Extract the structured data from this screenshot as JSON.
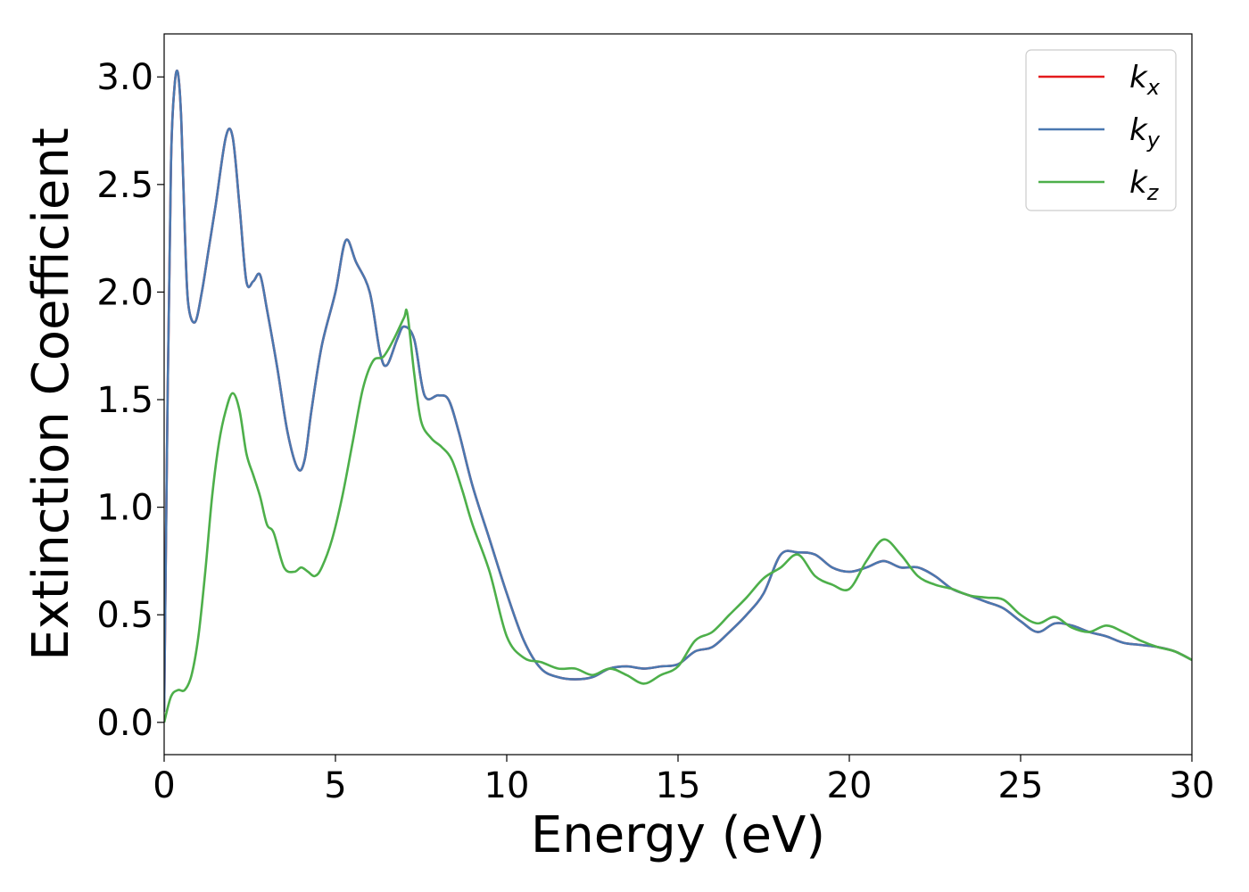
{
  "chart_data": {
    "type": "line",
    "title": "",
    "xlabel": "Energy (eV)",
    "ylabel": "Extinction Coefficient",
    "xlim": [
      0,
      30
    ],
    "ylim": [
      -0.15,
      3.2
    ],
    "xticks": [
      0,
      5,
      10,
      15,
      20,
      25,
      30
    ],
    "xtick_labels": [
      "0",
      "5",
      "10",
      "15",
      "20",
      "25",
      "30"
    ],
    "yticks": [
      0.0,
      0.5,
      1.0,
      1.5,
      2.0,
      2.5,
      3.0
    ],
    "ytick_labels": [
      "0.0",
      "0.5",
      "1.0",
      "1.5",
      "2.0",
      "2.5",
      "3.0"
    ],
    "grid": false,
    "legend_position": "top-right",
    "series": [
      {
        "name": "k_x",
        "legend_main": "k",
        "legend_sub": "x",
        "color": "#e41a1c",
        "x": [
          0,
          0.1,
          0.2,
          0.3,
          0.4,
          0.5,
          0.6,
          0.7,
          0.9,
          1.1,
          1.3,
          1.5,
          1.8,
          2.0,
          2.2,
          2.4,
          2.6,
          2.8,
          3.0,
          3.3,
          3.6,
          3.9,
          4.1,
          4.3,
          4.6,
          5.0,
          5.3,
          5.6,
          6.0,
          6.3,
          6.5,
          6.8,
          7.0,
          7.3,
          7.6,
          8.0,
          8.3,
          8.6,
          9.0,
          9.5,
          10.0,
          10.5,
          11.0,
          11.5,
          12.0,
          12.5,
          13.0,
          13.5,
          14.0,
          14.5,
          15.0,
          15.5,
          16.0,
          16.5,
          17.0,
          17.5,
          18.0,
          18.5,
          19.0,
          19.5,
          20.0,
          20.5,
          21.0,
          21.5,
          22.0,
          22.5,
          23.0,
          23.5,
          24.0,
          24.5,
          25.0,
          25.5,
          26.0,
          26.5,
          27.0,
          27.5,
          28.0,
          28.5,
          29.0,
          29.5,
          30.0
        ],
        "y": [
          0.05,
          1.5,
          2.6,
          2.95,
          3.02,
          2.8,
          2.3,
          1.95,
          1.86,
          2.0,
          2.2,
          2.4,
          2.72,
          2.72,
          2.4,
          2.05,
          2.05,
          2.08,
          1.92,
          1.65,
          1.35,
          1.18,
          1.22,
          1.45,
          1.75,
          2.0,
          2.24,
          2.14,
          2.0,
          1.72,
          1.66,
          1.78,
          1.84,
          1.78,
          1.52,
          1.52,
          1.5,
          1.35,
          1.1,
          0.85,
          0.6,
          0.38,
          0.25,
          0.21,
          0.2,
          0.21,
          0.25,
          0.26,
          0.25,
          0.26,
          0.27,
          0.33,
          0.35,
          0.42,
          0.5,
          0.6,
          0.78,
          0.79,
          0.78,
          0.72,
          0.7,
          0.72,
          0.75,
          0.72,
          0.72,
          0.68,
          0.62,
          0.59,
          0.56,
          0.53,
          0.47,
          0.42,
          0.46,
          0.45,
          0.42,
          0.4,
          0.37,
          0.36,
          0.35,
          0.33,
          0.29
        ]
      },
      {
        "name": "k_y",
        "legend_main": "k",
        "legend_sub": "y",
        "color": "#4a78b0",
        "x": [
          0,
          0.1,
          0.2,
          0.3,
          0.4,
          0.5,
          0.6,
          0.7,
          0.9,
          1.1,
          1.3,
          1.5,
          1.8,
          2.0,
          2.2,
          2.4,
          2.6,
          2.8,
          3.0,
          3.3,
          3.6,
          3.9,
          4.1,
          4.3,
          4.6,
          5.0,
          5.3,
          5.6,
          6.0,
          6.3,
          6.5,
          6.8,
          7.0,
          7.3,
          7.6,
          8.0,
          8.3,
          8.6,
          9.0,
          9.5,
          10.0,
          10.5,
          11.0,
          11.5,
          12.0,
          12.5,
          13.0,
          13.5,
          14.0,
          14.5,
          15.0,
          15.5,
          16.0,
          16.5,
          17.0,
          17.5,
          18.0,
          18.5,
          19.0,
          19.5,
          20.0,
          20.5,
          21.0,
          21.5,
          22.0,
          22.5,
          23.0,
          23.5,
          24.0,
          24.5,
          25.0,
          25.5,
          26.0,
          26.5,
          27.0,
          27.5,
          28.0,
          28.5,
          29.0,
          29.5,
          30.0
        ],
        "y": [
          0.05,
          1.5,
          2.6,
          2.95,
          3.02,
          2.8,
          2.3,
          1.95,
          1.86,
          2.0,
          2.2,
          2.4,
          2.72,
          2.72,
          2.4,
          2.05,
          2.05,
          2.08,
          1.92,
          1.65,
          1.35,
          1.18,
          1.22,
          1.45,
          1.75,
          2.0,
          2.24,
          2.14,
          2.0,
          1.72,
          1.66,
          1.78,
          1.84,
          1.78,
          1.52,
          1.52,
          1.5,
          1.35,
          1.1,
          0.85,
          0.6,
          0.38,
          0.25,
          0.21,
          0.2,
          0.21,
          0.25,
          0.26,
          0.25,
          0.26,
          0.27,
          0.33,
          0.35,
          0.42,
          0.5,
          0.6,
          0.78,
          0.79,
          0.78,
          0.72,
          0.7,
          0.72,
          0.75,
          0.72,
          0.72,
          0.68,
          0.62,
          0.59,
          0.56,
          0.53,
          0.47,
          0.42,
          0.46,
          0.45,
          0.42,
          0.4,
          0.37,
          0.36,
          0.35,
          0.33,
          0.29
        ]
      },
      {
        "name": "k_z",
        "legend_main": "k",
        "legend_sub": "z",
        "color": "#4daf4a",
        "x": [
          0,
          0.2,
          0.4,
          0.6,
          0.8,
          1.0,
          1.2,
          1.4,
          1.6,
          1.8,
          2.0,
          2.2,
          2.4,
          2.6,
          2.8,
          3.0,
          3.2,
          3.5,
          3.8,
          4.0,
          4.2,
          4.4,
          4.6,
          4.9,
          5.2,
          5.5,
          5.8,
          6.1,
          6.4,
          6.7,
          7.0,
          7.1,
          7.3,
          7.5,
          7.8,
          8.1,
          8.4,
          8.7,
          9.0,
          9.5,
          10.0,
          10.5,
          11.0,
          11.5,
          12.0,
          12.5,
          13.0,
          13.5,
          14.0,
          14.5,
          15.0,
          15.5,
          16.0,
          16.5,
          17.0,
          17.5,
          18.0,
          18.5,
          19.0,
          19.5,
          20.0,
          20.5,
          21.0,
          21.5,
          22.0,
          22.5,
          23.0,
          23.5,
          24.0,
          24.5,
          25.0,
          25.5,
          26.0,
          26.5,
          27.0,
          27.5,
          28.0,
          28.5,
          29.0,
          29.5,
          30.0
        ],
        "y": [
          0.0,
          0.12,
          0.15,
          0.15,
          0.22,
          0.4,
          0.7,
          1.05,
          1.3,
          1.45,
          1.53,
          1.45,
          1.25,
          1.15,
          1.05,
          0.92,
          0.88,
          0.72,
          0.7,
          0.72,
          0.7,
          0.68,
          0.72,
          0.85,
          1.05,
          1.3,
          1.55,
          1.68,
          1.7,
          1.78,
          1.88,
          1.9,
          1.62,
          1.4,
          1.32,
          1.28,
          1.22,
          1.08,
          0.92,
          0.7,
          0.4,
          0.3,
          0.28,
          0.25,
          0.25,
          0.22,
          0.25,
          0.22,
          0.18,
          0.22,
          0.26,
          0.38,
          0.42,
          0.5,
          0.58,
          0.67,
          0.72,
          0.78,
          0.68,
          0.64,
          0.62,
          0.75,
          0.85,
          0.78,
          0.68,
          0.64,
          0.62,
          0.59,
          0.58,
          0.57,
          0.5,
          0.46,
          0.49,
          0.44,
          0.42,
          0.45,
          0.42,
          0.38,
          0.35,
          0.33,
          0.29
        ]
      }
    ]
  }
}
